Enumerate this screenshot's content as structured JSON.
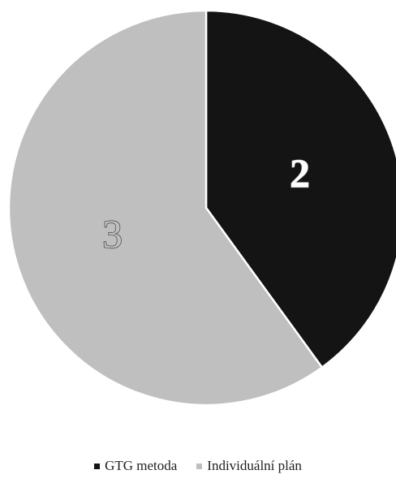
{
  "chart_data": {
    "type": "pie",
    "title": "",
    "categories": [
      "GTG metoda",
      "Individuální plán"
    ],
    "values": [
      2,
      3
    ],
    "data_labels": [
      "2",
      "3"
    ],
    "colors": [
      "#141414",
      "#bfbfbf"
    ],
    "start_angle_degrees": 0,
    "direction": "clockwise",
    "legend_position": "bottom",
    "grid": false
  },
  "legend": {
    "items": [
      {
        "label": "GTG metoda",
        "color": "#141414"
      },
      {
        "label": "Individuální plán",
        "color": "#bfbfbf"
      }
    ]
  }
}
